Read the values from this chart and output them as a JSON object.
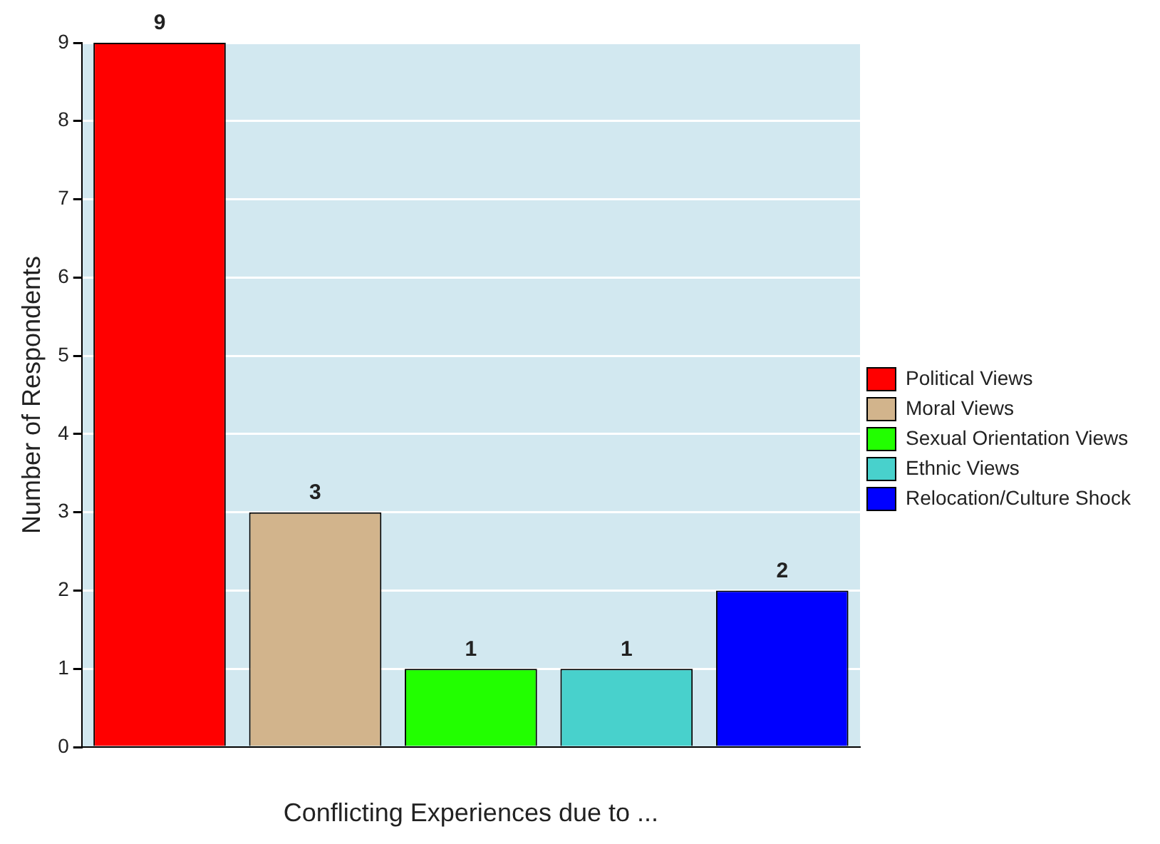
{
  "chart_data": {
    "type": "bar",
    "xlabel": "Conflicting Experiences due to ...",
    "ylabel": "Number of Respondents",
    "categories": [
      null,
      null,
      null,
      null,
      null
    ],
    "series": [
      {
        "name": "Political Views",
        "color": "#ff0000",
        "values": [
          9,
          null,
          null,
          null,
          null
        ]
      },
      {
        "name": "Moral Views",
        "color": "#d2b48c",
        "values": [
          null,
          3,
          null,
          null,
          null
        ]
      },
      {
        "name": "Sexual Orientation Views",
        "color": "#22ff00",
        "values": [
          null,
          null,
          1,
          null,
          null
        ]
      },
      {
        "name": "Ethnic Views",
        "color": "#48d1cc",
        "values": [
          null,
          null,
          null,
          1,
          null
        ]
      },
      {
        "name": "Relocation/Culture Shock",
        "color": "#0000ff",
        "values": [
          null,
          null,
          null,
          null,
          2
        ]
      }
    ],
    "ylim": [
      0,
      9
    ],
    "yticks": [
      0,
      1,
      2,
      3,
      4,
      5,
      6,
      7,
      8,
      9
    ],
    "grid": "y",
    "legend": "right",
    "data_labels": true
  }
}
